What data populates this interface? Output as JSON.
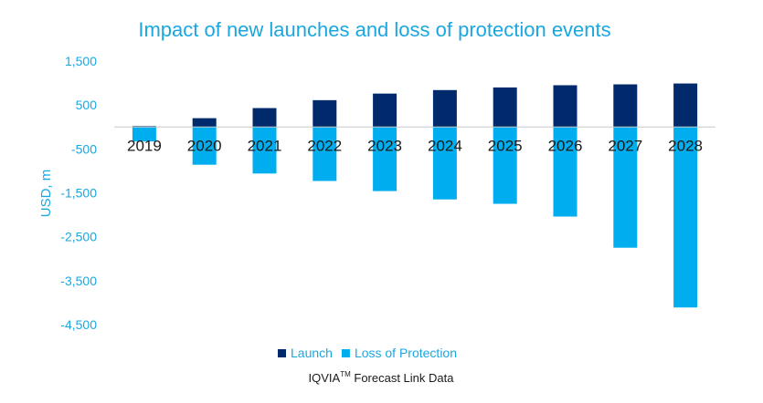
{
  "chart_data": {
    "type": "bar",
    "title": "Impact of new launches and loss of protection events",
    "ylabel": "USD, m",
    "xlabel": "",
    "ylim": [
      -4500,
      1500
    ],
    "yticks": [
      "1,500",
      "500",
      "-500",
      "-1,500",
      "-2,500",
      "-3,500",
      "-4,500"
    ],
    "categories": [
      "2019",
      "2020",
      "2021",
      "2022",
      "2023",
      "2024",
      "2025",
      "2026",
      "2027",
      "2028"
    ],
    "series": [
      {
        "name": "Launch",
        "color": "#002a6b",
        "values": [
          20,
          200,
          430,
          610,
          760,
          840,
          900,
          950,
          970,
          990
        ]
      },
      {
        "name": "Loss of Protection",
        "color": "#00aeef",
        "values": [
          -330,
          -860,
          -1060,
          -1230,
          -1460,
          -1650,
          -1750,
          -2040,
          -2750,
          -4110
        ]
      }
    ],
    "legend_position": "bottom",
    "grid": false
  },
  "source": {
    "text": "IQVIA",
    "superscript": "TM",
    "suffix": " Forecast Link Data"
  }
}
